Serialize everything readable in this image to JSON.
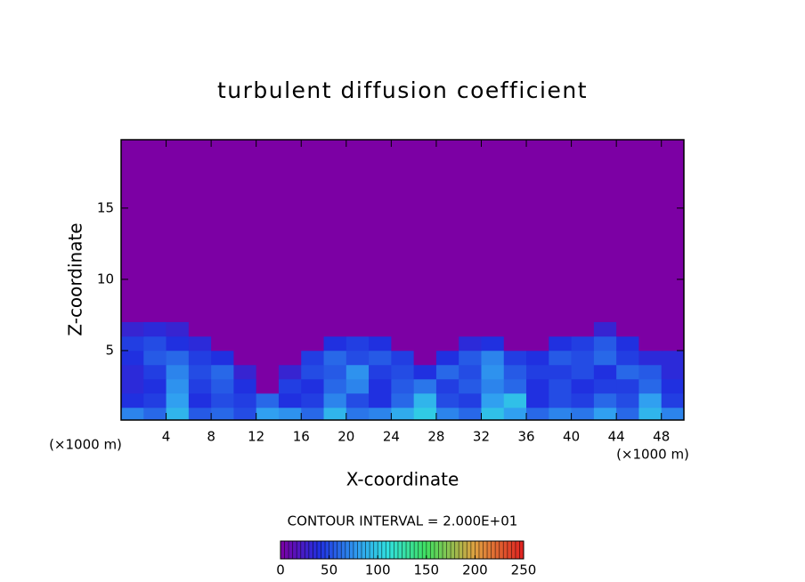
{
  "chart_data": {
    "type": "heatmap",
    "title": "turbulent diffusion coefficient",
    "x_label": "X-coordinate",
    "y_label": "Z-coordinate",
    "x_unit_label": "(×1000 m)",
    "contour_interval_label": "CONTOUR INTERVAL = 2.000E+01",
    "xlim": [
      0,
      50
    ],
    "ylim": [
      0.125,
      19.8
    ],
    "xticks": [
      4,
      8,
      12,
      16,
      20,
      24,
      28,
      32,
      36,
      40,
      44,
      48
    ],
    "yticks": [
      5,
      10,
      15
    ],
    "zlim": [
      0,
      250
    ],
    "zticks": [
      0,
      50,
      100,
      150,
      200,
      250
    ],
    "colormap": [
      {
        "value": 0,
        "color": "#7c00a4"
      },
      {
        "value": 40,
        "color": "#2030e0"
      },
      {
        "value": 80,
        "color": "#30a0f0"
      },
      {
        "value": 110,
        "color": "#30e0e0"
      },
      {
        "value": 150,
        "color": "#40e060"
      },
      {
        "value": 200,
        "color": "#e0a040"
      },
      {
        "value": 250,
        "color": "#e02020"
      }
    ],
    "field": {
      "x_edges": [
        0,
        2,
        4,
        6,
        8,
        10,
        12,
        14,
        16,
        18,
        20,
        22,
        24,
        26,
        28,
        30,
        32,
        34,
        36,
        38,
        40,
        42,
        44,
        46,
        48,
        50
      ],
      "z_edges": [
        0.125,
        1,
        2,
        3,
        4,
        5,
        6,
        7
      ],
      "values": [
        [
          70,
          60,
          90,
          55,
          60,
          50,
          80,
          75,
          60,
          90,
          65,
          70,
          85,
          100,
          70,
          60,
          95,
          80,
          60,
          70,
          65,
          80,
          60,
          90,
          70
        ],
        [
          40,
          45,
          80,
          40,
          50,
          45,
          60,
          40,
          45,
          70,
          50,
          40,
          60,
          90,
          50,
          45,
          80,
          95,
          40,
          50,
          45,
          60,
          50,
          80,
          45
        ],
        [
          35,
          40,
          75,
          45,
          55,
          40,
          0,
          45,
          40,
          60,
          70,
          40,
          55,
          65,
          45,
          55,
          70,
          60,
          40,
          50,
          40,
          45,
          45,
          60,
          40
        ],
        [
          35,
          45,
          70,
          50,
          60,
          30,
          0,
          30,
          50,
          55,
          75,
          45,
          50,
          40,
          60,
          50,
          75,
          55,
          45,
          45,
          50,
          40,
          60,
          55,
          35
        ],
        [
          40,
          55,
          60,
          45,
          40,
          0,
          0,
          0,
          45,
          60,
          50,
          55,
          45,
          0,
          40,
          55,
          70,
          45,
          40,
          55,
          50,
          60,
          45,
          35,
          35
        ],
        [
          45,
          50,
          40,
          35,
          0,
          0,
          0,
          0,
          0,
          40,
          45,
          40,
          0,
          0,
          0,
          35,
          40,
          0,
          0,
          40,
          45,
          55,
          40,
          0,
          0
        ],
        [
          30,
          35,
          30,
          0,
          0,
          0,
          0,
          0,
          0,
          0,
          0,
          0,
          0,
          0,
          0,
          0,
          0,
          0,
          0,
          0,
          0,
          30,
          0,
          0,
          0
        ]
      ]
    }
  }
}
